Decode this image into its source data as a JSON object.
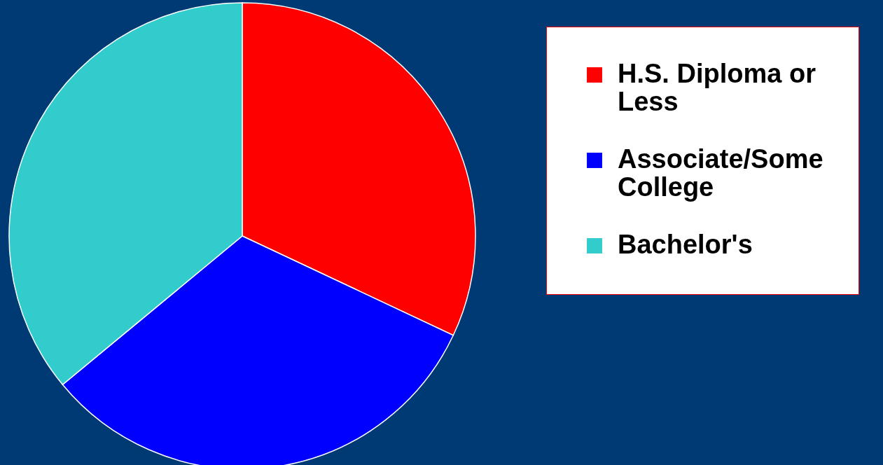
{
  "chart_data": {
    "type": "pie",
    "categories": [
      "H.S. Diploma or Less",
      "Associate/Some College",
      "Bachelor's"
    ],
    "values": [
      32,
      32,
      36
    ],
    "colors": [
      "#ff0000",
      "#0000ff",
      "#33cccc"
    ],
    "legend": "right"
  }
}
